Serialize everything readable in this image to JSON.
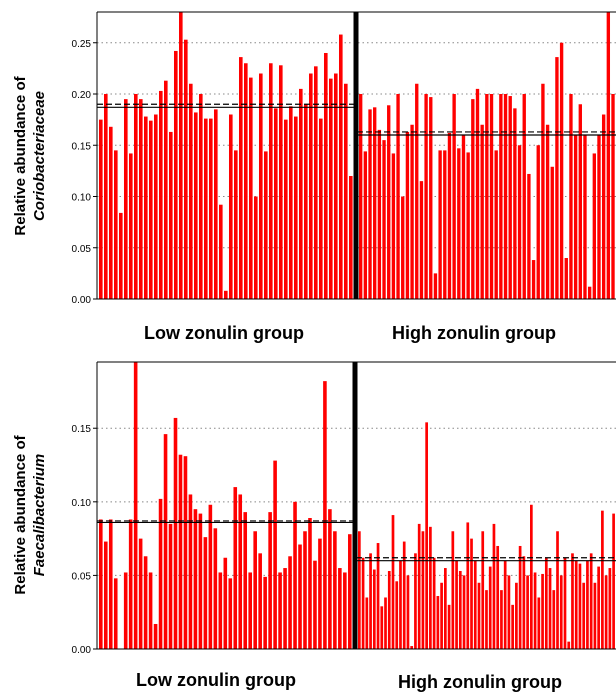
{
  "chart_data": [
    {
      "type": "bar",
      "ylabel_prefix": "Relative abundance of",
      "ylabel_taxon": "Coriobacteriaceae",
      "ylim": [
        0,
        0.28
      ],
      "yticks": [
        0.0,
        0.05,
        0.1,
        0.15,
        0.2,
        0.25
      ],
      "ytick_labels": [
        "0.00",
        "0.05",
        "0.10",
        "0.15",
        "0.20",
        "0.25"
      ],
      "grid": "horizontal dotted",
      "bar_color": "#ff0000",
      "divider_color": "#000000",
      "groups": [
        {
          "label": "Low zonulin group",
          "mean": 0.19,
          "median": 0.187,
          "values": [
            0.175,
            0.2,
            0.168,
            0.145,
            0.084,
            0.195,
            0.142,
            0.2,
            0.195,
            0.178,
            0.174,
            0.18,
            0.203,
            0.213,
            0.163,
            0.242,
            0.28,
            0.253,
            0.21,
            0.182,
            0.2,
            0.176,
            0.176,
            0.185,
            0.092,
            0.008,
            0.18,
            0.145,
            0.236,
            0.23,
            0.216,
            0.1,
            0.22,
            0.144,
            0.23,
            0.186,
            0.228,
            0.175,
            0.188,
            0.178,
            0.205,
            0.19,
            0.22,
            0.227,
            0.176,
            0.24,
            0.215,
            0.22,
            0.258,
            0.21,
            0.12
          ]
        },
        {
          "label": "High zonulin group",
          "mean": 0.163,
          "median": 0.16,
          "values": [
            0.2,
            0.144,
            0.185,
            0.187,
            0.165,
            0.155,
            0.189,
            0.142,
            0.2,
            0.1,
            0.163,
            0.17,
            0.21,
            0.115,
            0.2,
            0.197,
            0.025,
            0.145,
            0.145,
            0.162,
            0.2,
            0.147,
            0.16,
            0.143,
            0.195,
            0.205,
            0.17,
            0.2,
            0.2,
            0.145,
            0.2,
            0.2,
            0.198,
            0.186,
            0.15,
            0.2,
            0.122,
            0.038,
            0.15,
            0.21,
            0.17,
            0.129,
            0.236,
            0.25,
            0.04,
            0.2,
            0.16,
            0.19,
            0.16,
            0.012,
            0.142,
            0.16,
            0.18,
            0.28,
            0.2
          ]
        }
      ]
    },
    {
      "type": "bar",
      "ylabel_prefix": "Relative abundance of",
      "ylabel_taxon": "Faecalibacterium",
      "ylim": [
        0,
        0.195
      ],
      "yticks": [
        0.0,
        0.05,
        0.1,
        0.15
      ],
      "ytick_labels": [
        "0.00",
        "0.05",
        "0.10",
        "0.15"
      ],
      "grid": "horizontal dotted",
      "bar_color": "#ff0000",
      "divider_color": "#000000",
      "groups": [
        {
          "label": "Low zonulin group",
          "mean": 0.087,
          "median": 0.086,
          "values": [
            0.088,
            0.073,
            0.088,
            0.048,
            0.0,
            0.052,
            0.088,
            0.2,
            0.075,
            0.063,
            0.052,
            0.017,
            0.102,
            0.146,
            0.085,
            0.157,
            0.132,
            0.131,
            0.105,
            0.095,
            0.092,
            0.076,
            0.098,
            0.082,
            0.052,
            0.062,
            0.048,
            0.11,
            0.105,
            0.093,
            0.052,
            0.08,
            0.065,
            0.049,
            0.093,
            0.128,
            0.052,
            0.055,
            0.063,
            0.1,
            0.071,
            0.08,
            0.089,
            0.06,
            0.075,
            0.182,
            0.095,
            0.08,
            0.055,
            0.052,
            0.078
          ]
        },
        {
          "label": "High zonulin group",
          "mean": 0.062,
          "median": 0.06,
          "values": [
            0.08,
            0.062,
            0.035,
            0.065,
            0.054,
            0.072,
            0.029,
            0.035,
            0.053,
            0.091,
            0.046,
            0.06,
            0.073,
            0.05,
            0.002,
            0.065,
            0.085,
            0.08,
            0.154,
            0.083,
            0.062,
            0.036,
            0.045,
            0.055,
            0.03,
            0.08,
            0.06,
            0.053,
            0.05,
            0.086,
            0.075,
            0.06,
            0.045,
            0.08,
            0.04,
            0.056,
            0.085,
            0.07,
            0.04,
            0.06,
            0.05,
            0.03,
            0.045,
            0.07,
            0.063,
            0.05,
            0.098,
            0.052,
            0.035,
            0.051,
            0.062,
            0.055,
            0.04,
            0.08,
            0.05,
            0.062,
            0.005,
            0.065,
            0.06,
            0.058,
            0.045,
            0.06,
            0.065,
            0.045,
            0.056,
            0.094,
            0.05,
            0.055,
            0.092
          ]
        }
      ]
    }
  ]
}
